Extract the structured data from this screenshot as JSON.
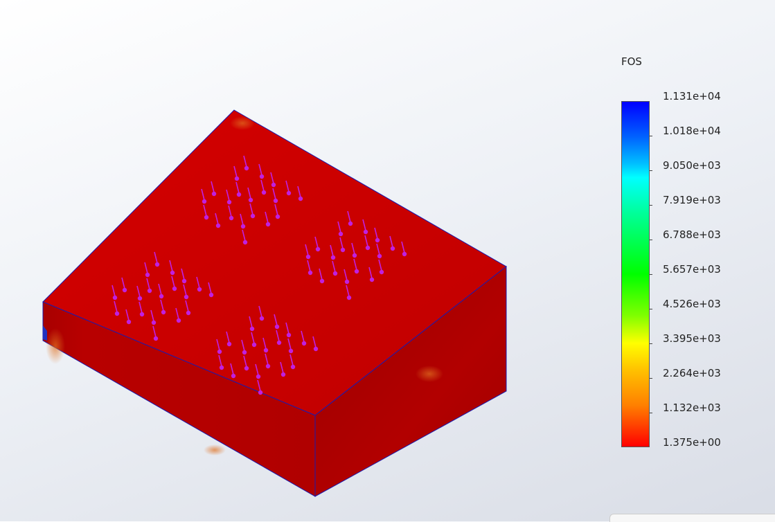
{
  "legend": {
    "title": "FOS",
    "labels": [
      "1.131e+04",
      "1.018e+04",
      "9.050e+03",
      "7.919e+03",
      "6.788e+03",
      "5.657e+03",
      "4.526e+03",
      "3.395e+03",
      "2.264e+03",
      "1.132e+03",
      "1.375e+00"
    ]
  },
  "colors": {
    "model_top": "#c90000",
    "model_front": "#b00000",
    "model_side": "#a40000",
    "edge": "#1b1bb0",
    "load_arrow": "#c020e0"
  },
  "model": {
    "load_icon": "force-arrow-icon"
  }
}
